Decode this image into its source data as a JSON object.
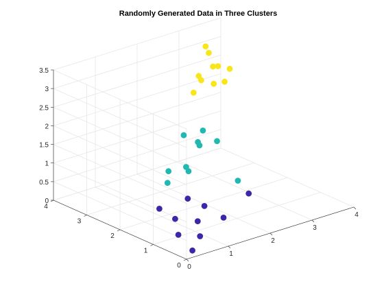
{
  "chart_data": {
    "type": "scatter3d",
    "title": "Randomly Generated Data in Three Clusters",
    "xlim": [
      0,
      4
    ],
    "ylim": [
      0,
      4
    ],
    "zlim": [
      0,
      3.5
    ],
    "xticks": [
      "0",
      "1",
      "2",
      "3",
      "4"
    ],
    "yticks": [
      "0",
      "1",
      "2",
      "3",
      "4"
    ],
    "zticks": [
      "0",
      "0.5",
      "1",
      "1.5",
      "2",
      "2.5",
      "3",
      "3.5"
    ],
    "grid": true,
    "legend": false,
    "xlabel": "",
    "ylabel": "",
    "zlabel": "",
    "series": [
      {
        "color": "#3e26a8",
        "points": [
          [
            0.3,
            0.2,
            0.05
          ],
          [
            0.8,
            0.6,
            0.1
          ],
          [
            0.6,
            1.0,
            0.05
          ],
          [
            1.0,
            1.6,
            0.1
          ],
          [
            1.1,
            2.2,
            0.1
          ],
          [
            1.6,
            0.9,
            0.2
          ],
          [
            1.3,
            1.3,
            0.05
          ],
          [
            1.7,
            1.6,
            0.2
          ],
          [
            1.7,
            2.1,
            0.2
          ],
          [
            2.6,
            1.4,
            0.3
          ]
        ]
      },
      {
        "color": "#21b8b0",
        "points": [
          [
            0.5,
            1.2,
            1.4
          ],
          [
            1.0,
            1.8,
            1.3
          ],
          [
            1.4,
            1.7,
            1.2
          ],
          [
            1.5,
            1.9,
            1.2
          ],
          [
            1.9,
            2.0,
            1.6
          ],
          [
            2.1,
            2.3,
            1.5
          ],
          [
            2.0,
            2.6,
            1.6
          ],
          [
            2.3,
            2.4,
            1.7
          ],
          [
            2.4,
            2.1,
            1.5
          ],
          [
            2.5,
            1.6,
            0.6
          ]
        ]
      },
      {
        "color": "#f9e51b",
        "points": [
          [
            1.6,
            1.8,
            3.2
          ],
          [
            2.5,
            2.0,
            3.1
          ],
          [
            2.1,
            2.2,
            3.2
          ],
          [
            2.2,
            2.4,
            3.2
          ],
          [
            2.4,
            2.2,
            3.0
          ],
          [
            2.7,
            2.6,
            3.2
          ],
          [
            2.9,
            2.7,
            3.1
          ],
          [
            3.1,
            2.6,
            3.0
          ],
          [
            3.0,
            3.2,
            3.4
          ],
          [
            2.6,
            2.6,
            3.6
          ]
        ]
      }
    ]
  }
}
